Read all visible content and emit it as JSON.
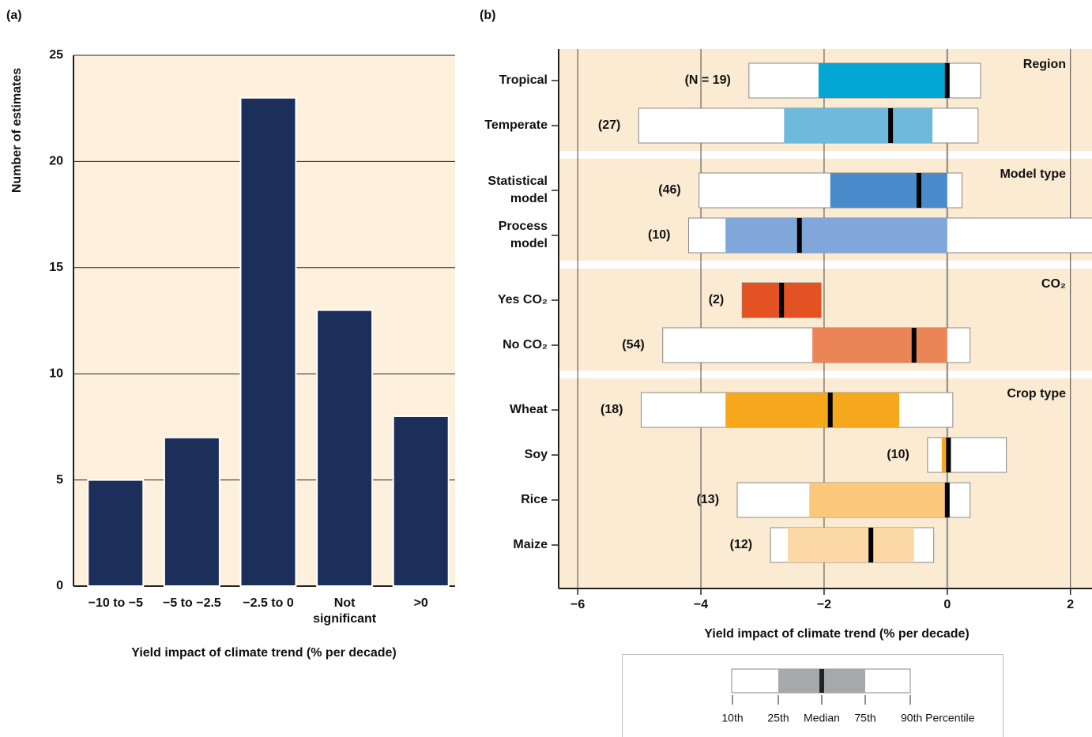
{
  "chart_data": [
    {
      "type": "bar",
      "panel_label": "(a)",
      "categories": [
        "−10 to −5",
        "−5 to −2.5",
        "−2.5 to 0",
        [
          "Not",
          "significant"
        ],
        ">0"
      ],
      "values": [
        5,
        7,
        23,
        13,
        8
      ],
      "color": "#1b2f5a",
      "ylim": [
        0,
        25
      ],
      "yticks": [
        0,
        5,
        10,
        15,
        20,
        25
      ],
      "grid": true,
      "xlabel": "Yield impact of climate trend (% per decade)",
      "ylabel": "Number of estimates"
    },
    {
      "type": "boxplot",
      "panel_label": "(b)",
      "xlim": [
        -6.31,
        2.35
      ],
      "xticks": [
        {
          "value": -6,
          "label": "−6"
        },
        {
          "value": -4,
          "label": "−4"
        },
        {
          "value": -2,
          "label": "−2"
        },
        0,
        2
      ],
      "xlabel": "Yield impact of climate trend  (% per decade)",
      "groups": [
        {
          "name": "Region",
          "rows": [
            {
              "label": [
                "Tropical"
              ],
              "n_label": "(N = 19)",
              "color": "#04a7d3",
              "stats": [
                -3.22,
                -2.09,
                0,
                0,
                0.54
              ]
            },
            {
              "label": [
                "Temperate"
              ],
              "n_label": "(27)",
              "color": "#6fbadb",
              "stats": [
                -5.01,
                -2.65,
                -0.92,
                -0.24,
                0.5
              ]
            }
          ]
        },
        {
          "name": "Model type",
          "rows": [
            {
              "label": [
                "Statistical",
                "model"
              ],
              "n_label": "(46)",
              "color": "#4a8ccb",
              "stats": [
                -4.03,
                -1.9,
                -0.46,
                0,
                0.24
              ]
            },
            {
              "label": [
                "Process",
                "model"
              ],
              "n_label": "(10)",
              "color": "#80a6da",
              "stats": [
                -4.2,
                -3.6,
                -2.4,
                0,
                2.5
              ]
            }
          ]
        },
        {
          "name": "CO₂",
          "rows": [
            {
              "label": [
                "Yes CO₂"
              ],
              "n_label": "(2)",
              "color": "#e35223",
              "stats": [
                -3.33,
                -3.33,
                -2.69,
                -2.05,
                -2.05
              ]
            },
            {
              "label": [
                "No CO₂"
              ],
              "n_label": "(54)",
              "color": "#ec8556",
              "stats": [
                -4.62,
                -2.19,
                -0.54,
                0,
                0.37
              ]
            }
          ]
        },
        {
          "name": "Crop type",
          "rows": [
            {
              "label": [
                "Wheat"
              ],
              "n_label": "(18)",
              "color": "#f6a81c",
              "stats": [
                -4.97,
                -3.6,
                -1.9,
                -0.78,
                0.09
              ]
            },
            {
              "label": [
                "Soy"
              ],
              "n_label": "(10)",
              "color": "#f6a81c",
              "stats": [
                -0.32,
                -0.09,
                0.02,
                0.02,
                0.96
              ]
            },
            {
              "label": [
                "Rice"
              ],
              "n_label": "(13)",
              "color": "#f9c87a",
              "stats": [
                -3.41,
                -2.24,
                0,
                0,
                0.37
              ]
            },
            {
              "label": [
                "Maize"
              ],
              "n_label": "(12)",
              "color": "#fbd8a4",
              "stats": [
                -2.87,
                -2.59,
                -1.24,
                -0.54,
                -0.22
              ]
            }
          ]
        }
      ],
      "legend": {
        "labels": [
          "10th",
          "25th",
          "Median",
          "75th",
          "90th Percentile"
        ]
      }
    }
  ]
}
